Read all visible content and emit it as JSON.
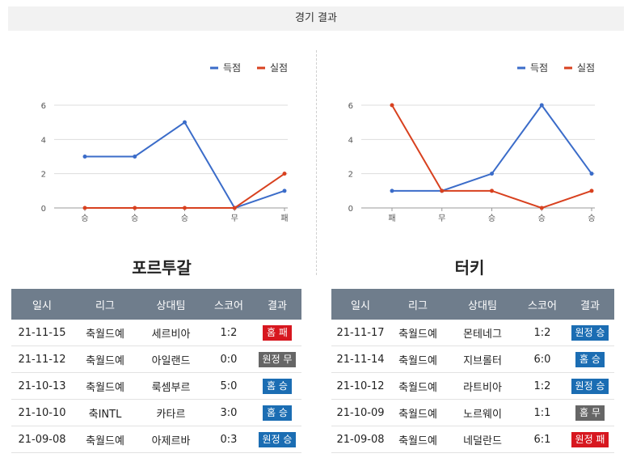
{
  "header": {
    "title": "경기 결과"
  },
  "legend": {
    "scored": "득점",
    "conceded": "실점"
  },
  "colors": {
    "scored": "#3b6cc9",
    "conceded": "#d8411f",
    "win": "#1b6db3",
    "draw": "#666666",
    "loss": "#d7171f",
    "table_head": "#6f7d8c"
  },
  "columns": [
    "일시",
    "리그",
    "상대팀",
    "스코어",
    "결과"
  ],
  "chart_data": [
    {
      "type": "line",
      "categories": [
        "승",
        "승",
        "승",
        "무",
        "패"
      ],
      "series": [
        {
          "name": "득점",
          "values": [
            3,
            3,
            5,
            0,
            1
          ]
        },
        {
          "name": "실점",
          "values": [
            0,
            0,
            0,
            0,
            2
          ]
        }
      ],
      "ylim": [
        0,
        6
      ],
      "yticks": [
        0,
        2,
        4,
        6
      ],
      "grid": true,
      "legend": "top-right"
    },
    {
      "type": "line",
      "categories": [
        "패",
        "무",
        "승",
        "승",
        "승"
      ],
      "series": [
        {
          "name": "득점",
          "values": [
            1,
            1,
            2,
            6,
            2
          ]
        },
        {
          "name": "실점",
          "values": [
            6,
            1,
            1,
            0,
            1
          ]
        }
      ],
      "ylim": [
        0,
        6
      ],
      "yticks": [
        0,
        2,
        4,
        6
      ],
      "grid": true,
      "legend": "top-right"
    }
  ],
  "teams": [
    {
      "name": "포르투갈",
      "matches": [
        {
          "date": "21-11-15",
          "league": "축월드예",
          "opponent": "세르비아",
          "score": "1:2",
          "result": "홈 패",
          "status": "loss"
        },
        {
          "date": "21-11-12",
          "league": "축월드예",
          "opponent": "아일랜드",
          "score": "0:0",
          "result": "원정 무",
          "status": "draw"
        },
        {
          "date": "21-10-13",
          "league": "축월드예",
          "opponent": "룩셈부르",
          "score": "5:0",
          "result": "홈 승",
          "status": "win"
        },
        {
          "date": "21-10-10",
          "league": "축INTL",
          "opponent": "카타르",
          "score": "3:0",
          "result": "홈 승",
          "status": "win"
        },
        {
          "date": "21-09-08",
          "league": "축월드예",
          "opponent": "아제르바",
          "score": "0:3",
          "result": "원정 승",
          "status": "win"
        }
      ]
    },
    {
      "name": "터키",
      "matches": [
        {
          "date": "21-11-17",
          "league": "축월드예",
          "opponent": "몬테네그",
          "score": "1:2",
          "result": "원정 승",
          "status": "win"
        },
        {
          "date": "21-11-14",
          "league": "축월드예",
          "opponent": "지브롤터",
          "score": "6:0",
          "result": "홈 승",
          "status": "win"
        },
        {
          "date": "21-10-12",
          "league": "축월드예",
          "opponent": "라트비아",
          "score": "1:2",
          "result": "원정 승",
          "status": "win"
        },
        {
          "date": "21-10-09",
          "league": "축월드예",
          "opponent": "노르웨이",
          "score": "1:1",
          "result": "홈 무",
          "status": "draw"
        },
        {
          "date": "21-09-08",
          "league": "축월드예",
          "opponent": "네덜란드",
          "score": "6:1",
          "result": "원정 패",
          "status": "loss"
        }
      ]
    }
  ]
}
